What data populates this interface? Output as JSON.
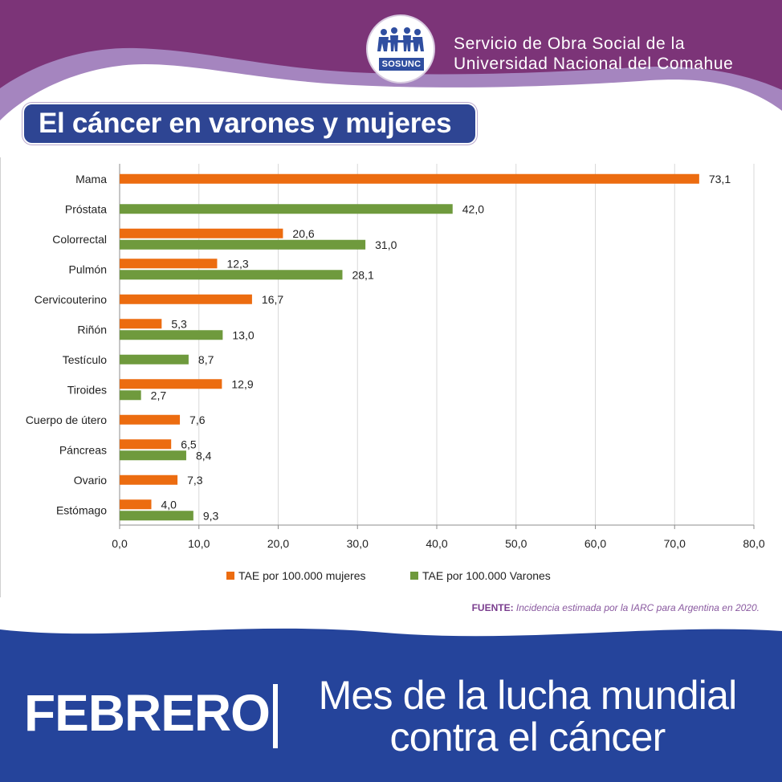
{
  "header": {
    "org_line1": "Servicio de Obra Social de la",
    "org_line2": "Universidad Nacional del Comahue",
    "logo_text": "SOSUNC",
    "title": "El cáncer en varones y mujeres"
  },
  "colors": {
    "purple": "#7c3478",
    "lavender": "#a585bf",
    "navy": "#2e4593",
    "female": "#ec6c10",
    "male": "#6f9a3d"
  },
  "chart_data": {
    "type": "bar",
    "orientation": "horizontal",
    "categories": [
      "Mama",
      "Próstata",
      "Colorrectal",
      "Pulmón",
      "Cervicouterino",
      "Riñón",
      "Testículo",
      "Tiroides",
      "Cuerpo de útero",
      "Páncreas",
      "Ovario",
      "Estómago"
    ],
    "series": [
      {
        "name": "TAE por 100.000 mujeres",
        "color": "#ec6c10",
        "values": [
          73.1,
          null,
          20.6,
          12.3,
          16.7,
          5.3,
          null,
          12.9,
          7.6,
          6.5,
          7.3,
          4.0
        ],
        "labels": [
          "73,1",
          "",
          "20,6",
          "12,3",
          "16,7",
          "5,3",
          "",
          "12,9",
          "7,6",
          "6,5",
          "7,3",
          "4,0"
        ]
      },
      {
        "name": "TAE por 100.000 Varones",
        "color": "#6f9a3d",
        "values": [
          null,
          42.0,
          31.0,
          28.1,
          null,
          13.0,
          8.7,
          2.7,
          null,
          8.4,
          null,
          9.3
        ],
        "labels": [
          "",
          "42,0",
          "31,0",
          "28,1",
          "",
          "13,0",
          "8,7",
          "2,7",
          "",
          "8,4",
          "",
          "9,3"
        ]
      }
    ],
    "xlim": [
      0,
      80
    ],
    "xticks": [
      "0,0",
      "10,0",
      "20,0",
      "30,0",
      "40,0",
      "50,0",
      "60,0",
      "70,0",
      "80,0"
    ],
    "xtick_values": [
      0,
      10,
      20,
      30,
      40,
      50,
      60,
      70,
      80
    ],
    "grid": true,
    "legend_position": "bottom"
  },
  "source": {
    "label": "FUENTE:",
    "text": "Incidencia estimada por la IARC para Argentina en 2020."
  },
  "footer": {
    "month": "FEBRERO",
    "line1": "Mes de la lucha mundial",
    "line2": "contra el cáncer"
  }
}
